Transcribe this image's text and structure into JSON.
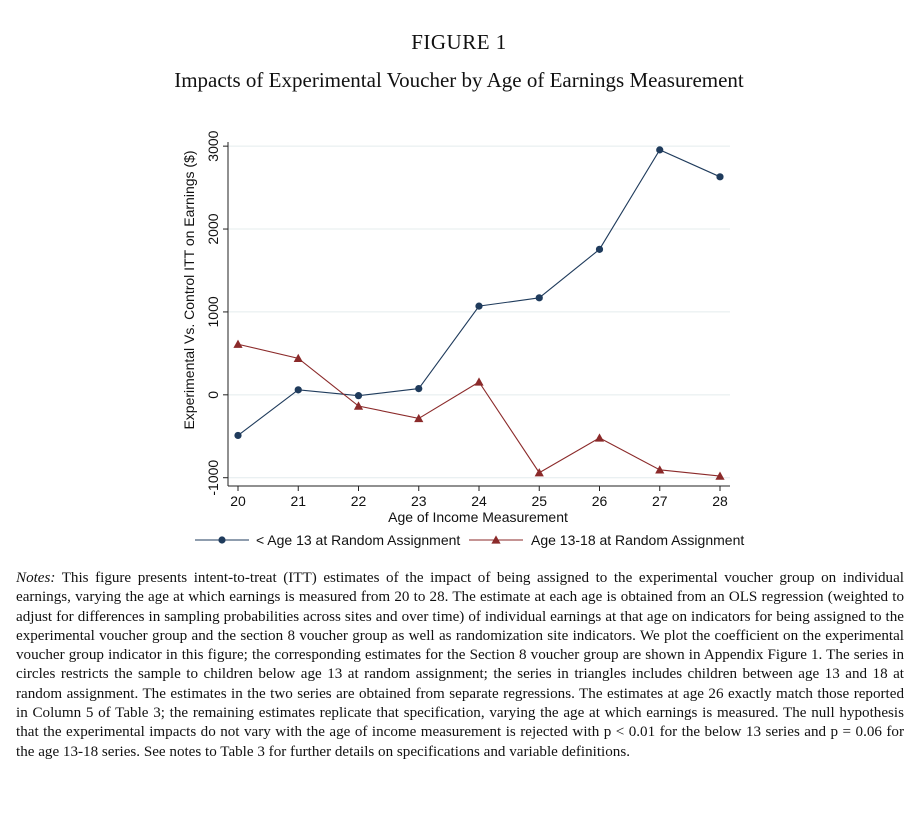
{
  "figure": {
    "label": "FIGURE 1",
    "title": "Impacts of Experimental Voucher by Age of Earnings Measurement"
  },
  "chart_data": {
    "type": "line",
    "title": "",
    "xlabel": "Age of Income Measurement",
    "ylabel": "Experimental Vs. Control ITT on Earnings ($)",
    "x": [
      20,
      21,
      22,
      23,
      24,
      25,
      26,
      27,
      28
    ],
    "x_ticks": [
      "20",
      "21",
      "22",
      "23",
      "24",
      "25",
      "26",
      "27",
      "28"
    ],
    "y_ticks": [
      "-1000",
      "0",
      "1000",
      "2000",
      "3000"
    ],
    "y_tick_values": [
      -1000,
      0,
      1000,
      2000,
      3000
    ],
    "xlim": [
      20,
      28
    ],
    "ylim": [
      -1100,
      3050
    ],
    "grid": "horizontal",
    "legend_placement": "bottom",
    "series": [
      {
        "name": "< Age 13 at Random Assignment",
        "marker": "circle",
        "color": "#1f3b5c",
        "values": [
          -490,
          60,
          -10,
          75,
          1070,
          1170,
          1755,
          2955,
          2630
        ]
      },
      {
        "name": "Age 13-18 at Random Assignment",
        "marker": "triangle",
        "color": "#8b2a2a",
        "values": [
          610,
          440,
          -135,
          -285,
          155,
          -940,
          -520,
          -905,
          -980
        ]
      }
    ]
  },
  "notes": {
    "lead": "Notes:",
    "body": " This figure presents intent-to-treat (ITT) estimates of the impact of being assigned to the experimental voucher group on individual earnings, varying the age at which earnings is measured from 20 to 28. The estimate at each age is obtained from an OLS regression (weighted to adjust for differences in sampling probabilities across sites and over time) of individual earnings at that age on indicators for being assigned to the experimental voucher group and the section 8 voucher group as well as randomization site indicators. We plot the coefficient on the experimental voucher group indicator in this figure; the corresponding estimates for the Section 8 voucher group are shown in Appendix Figure 1. The series in circles restricts the sample to children below age 13 at random assignment; the series in triangles includes children between age 13 and 18 at random assignment. The estimates in the two series are obtained from separate regressions. The estimates at age 26 exactly match those reported in Column 5 of Table 3; the remaining estimates replicate that specification, varying the age at which earnings is measured. The null hypothesis that the experimental impacts do not vary with the age of income measurement is rejected with p < 0.01 for the below 13 series and p = 0.06 for the age 13-18 series. See notes to Table 3 for further details on specifications and variable definitions."
  }
}
